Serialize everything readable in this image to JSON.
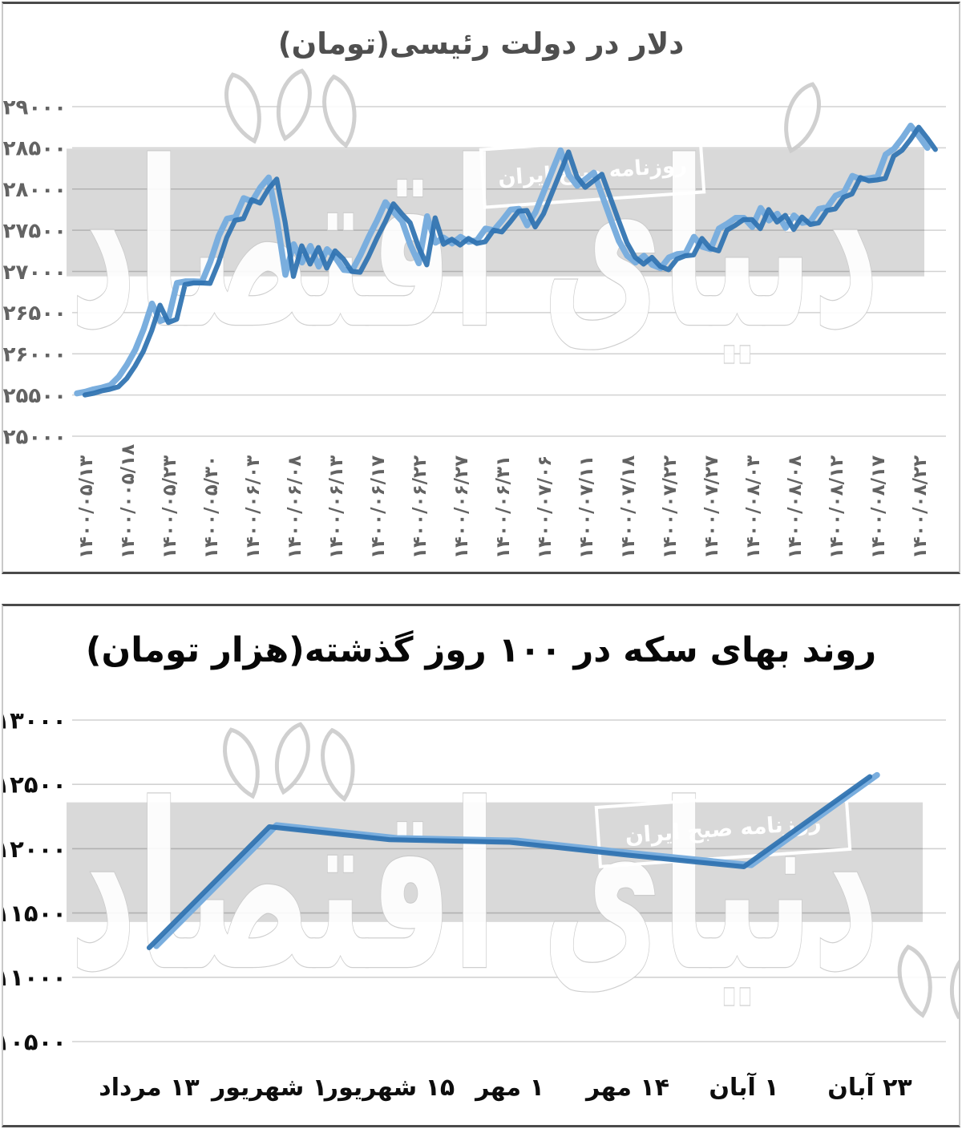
{
  "watermark": {
    "brand": "دنیای اقتصاد",
    "badge": "روزنامه صبح ایران",
    "band_color": "#d9d9d9"
  },
  "colors": {
    "line_dark": "#2e72b0",
    "line_light": "#7aaede",
    "grid": "#d2d2d2",
    "band": "rgba(0,0,0,0.15)",
    "wm_stroke": "#cbcbcb",
    "top_axis_text": "#636363",
    "bottom_axis_text": "#0d0d0d",
    "panel_border": "#4a4a4a"
  },
  "chart_data": [
    {
      "type": "line",
      "title": "دلار در دولت رئیسی(تومان)",
      "ylabel": "",
      "xlabel": "",
      "ylim": [
        25000,
        29000
      ],
      "grid": true,
      "highlight_band": [
        26940,
        28490
      ],
      "y_ticks": [
        29000,
        28500,
        28000,
        27500,
        27000,
        26500,
        26000,
        25500,
        25000
      ],
      "y_tick_labels": [
        "۲۹۰۰۰",
        "۲۸۵۰۰",
        "۲۸۰۰۰",
        "۲۷۵۰۰",
        "۲۷۰۰۰",
        "۲۶۵۰۰",
        "۲۶۰۰۰",
        "۲۵۵۰۰",
        "۲۵۰۰۰"
      ],
      "x_tick_labels": [
        "۱۴۰۰/۰۵/۱۳",
        "۱۴۰۰/۰۰۵/۱۸",
        "۱۴۰۰/۰۵/۲۳",
        "۱۴۰۰/۰۵/۳۰",
        "۱۴۰۰/۰۶/۰۳",
        "۱۴۰۰/۰۶/۰۸",
        "۱۴۰۰/۰۶/۱۳",
        "۱۴۰۰/۰۶/۱۷",
        "۱۴۰۰/۰۶/۲۲",
        "۱۴۰۰/۰۶/۲۷",
        "۱۴۰۰/۰۶/۳۱",
        "۱۴۰۰/۰۷/۰۶",
        "۱۴۰۰/۰۷/۱۱",
        "۱۴۰۰/۰۷/۱۸",
        "۱۴۰۰/۰۷/۲۲",
        "۱۴۰۰/۰۷/۲۷",
        "۱۴۰۰/۰۸/۰۳",
        "۱۴۰۰/۰۸/۰۸",
        "۱۴۰۰/۰۸/۱۲",
        "۱۴۰۰/۰۸/۱۷",
        "۱۴۰۰/۰۸/۲۲"
      ],
      "x_tick_interval_points": 5,
      "series": [
        {
          "name": "dollar-price-toman",
          "values": [
            25500,
            25520,
            25550,
            25570,
            25600,
            25700,
            25850,
            26030,
            26280,
            26590,
            26380,
            26420,
            26840,
            26860,
            26860,
            26855,
            27100,
            27410,
            27620,
            27640,
            27870,
            27830,
            28000,
            28120,
            27600,
            26940,
            27310,
            27090,
            27290,
            27040,
            27250,
            27150,
            27000,
            26990,
            27180,
            27400,
            27600,
            27820,
            27700,
            27590,
            27300,
            27080,
            27650,
            27330,
            27390,
            27320,
            27400,
            27340,
            27360,
            27500,
            27480,
            27600,
            27730,
            27740,
            27540,
            27700,
            27950,
            28200,
            28450,
            28150,
            28020,
            28100,
            28180,
            27900,
            27620,
            27350,
            27170,
            27090,
            27170,
            27060,
            27020,
            27150,
            27190,
            27200,
            27400,
            27280,
            27250,
            27500,
            27560,
            27630,
            27630,
            27520,
            27750,
            27600,
            27680,
            27510,
            27660,
            27570,
            27590,
            27740,
            27760,
            27900,
            27940,
            28140,
            28100,
            28110,
            28130,
            28400,
            28470,
            28600,
            28750,
            28620,
            28480
          ]
        }
      ]
    },
    {
      "type": "line",
      "title": "روند بهای سکه در ۱۰۰ روز گذشته(هزار تومان)",
      "ylabel": "",
      "xlabel": "",
      "ylim": [
        10500,
        13000
      ],
      "grid": true,
      "highlight_band": [
        11430,
        12360
      ],
      "y_ticks": [
        13000,
        12500,
        12000,
        11500,
        11000,
        10500
      ],
      "y_tick_labels": [
        "۱۳۰۰۰",
        "۱۲۵۰۰",
        "۱۲۰۰۰",
        "۱۱۵۰۰",
        "۱۱۰۰۰",
        "۱۰۵۰۰"
      ],
      "categories": [
        "۱۳ مرداد",
        "۱ شهریور",
        "۱۵ شهریور",
        "۱ مهر",
        "۱۴ مهر",
        "۱ آبان",
        "۲۳ آبان"
      ],
      "series": [
        {
          "name": "coin-price-thousand-toman",
          "values": [
            11230,
            12170,
            12070,
            12050,
            11950,
            11860,
            12560
          ]
        }
      ]
    }
  ]
}
